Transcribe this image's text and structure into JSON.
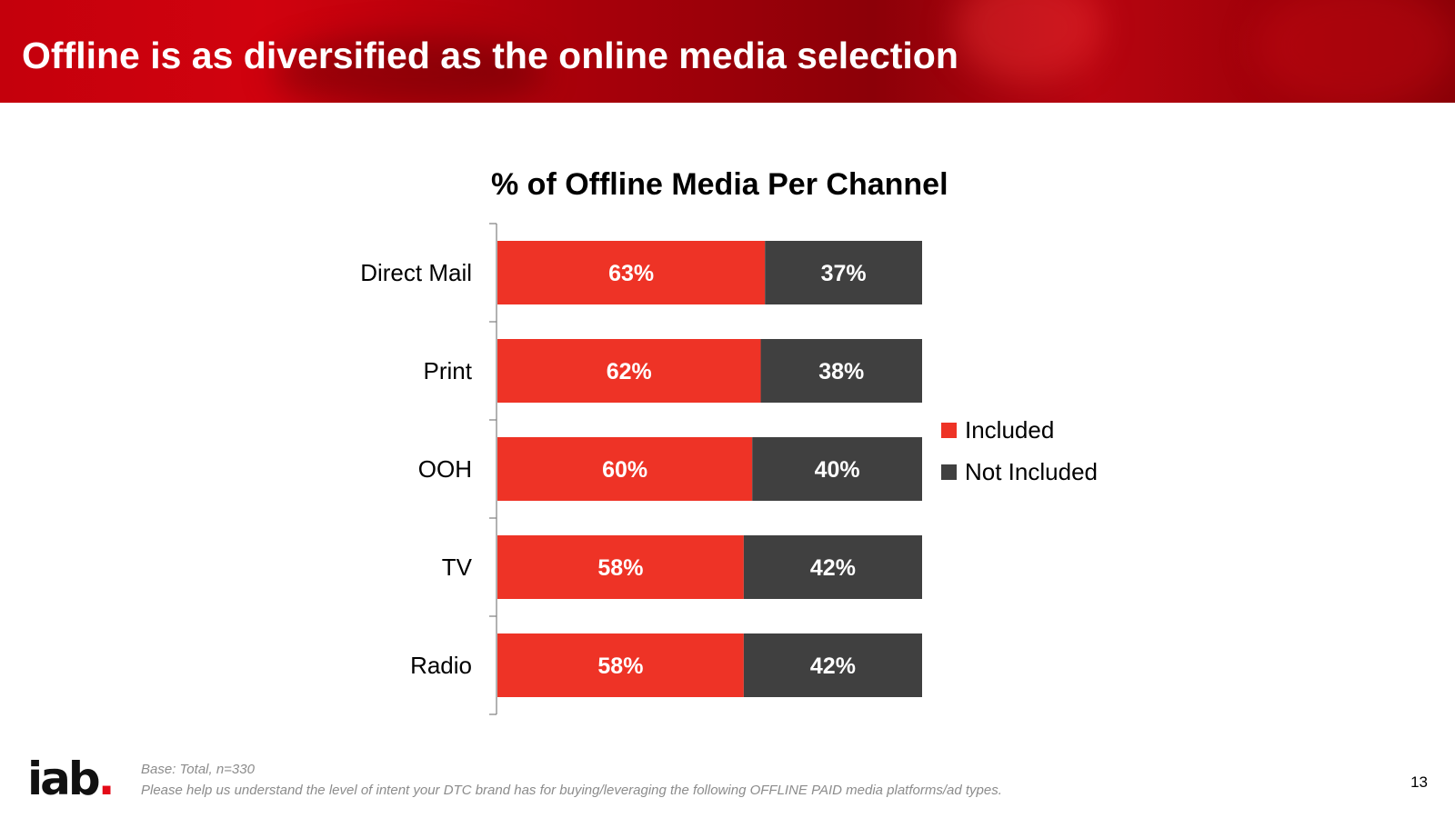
{
  "slide": {
    "title": "Offline is as diversified as the online media selection",
    "logo_text": "iab",
    "footnote_base": "Base: Total, n=330",
    "footnote_question": "Please help us understand the level of intent your DTC brand has for buying/leveraging the following OFFLINE PAID media platforms/ad types.",
    "page_number": "13"
  },
  "colors": {
    "included": "#ee3326",
    "not_included": "#404040",
    "header": "#b5000b"
  },
  "chart_data": {
    "type": "bar",
    "orientation": "horizontal",
    "stacked": true,
    "title": "% of Offline Media Per Channel",
    "categories": [
      "Direct Mail",
      "Print",
      "OOH",
      "TV",
      "Radio"
    ],
    "series": [
      {
        "name": "Included",
        "values": [
          63,
          62,
          60,
          58,
          58
        ],
        "labels": [
          "63%",
          "62%",
          "60%",
          "58%",
          "58%"
        ]
      },
      {
        "name": "Not Included",
        "values": [
          37,
          38,
          40,
          42,
          42
        ],
        "labels": [
          "37%",
          "38%",
          "40%",
          "42%",
          "42%"
        ]
      }
    ],
    "xlim": [
      0,
      100
    ],
    "unit": "%",
    "grid": false,
    "legend_position": "right"
  }
}
